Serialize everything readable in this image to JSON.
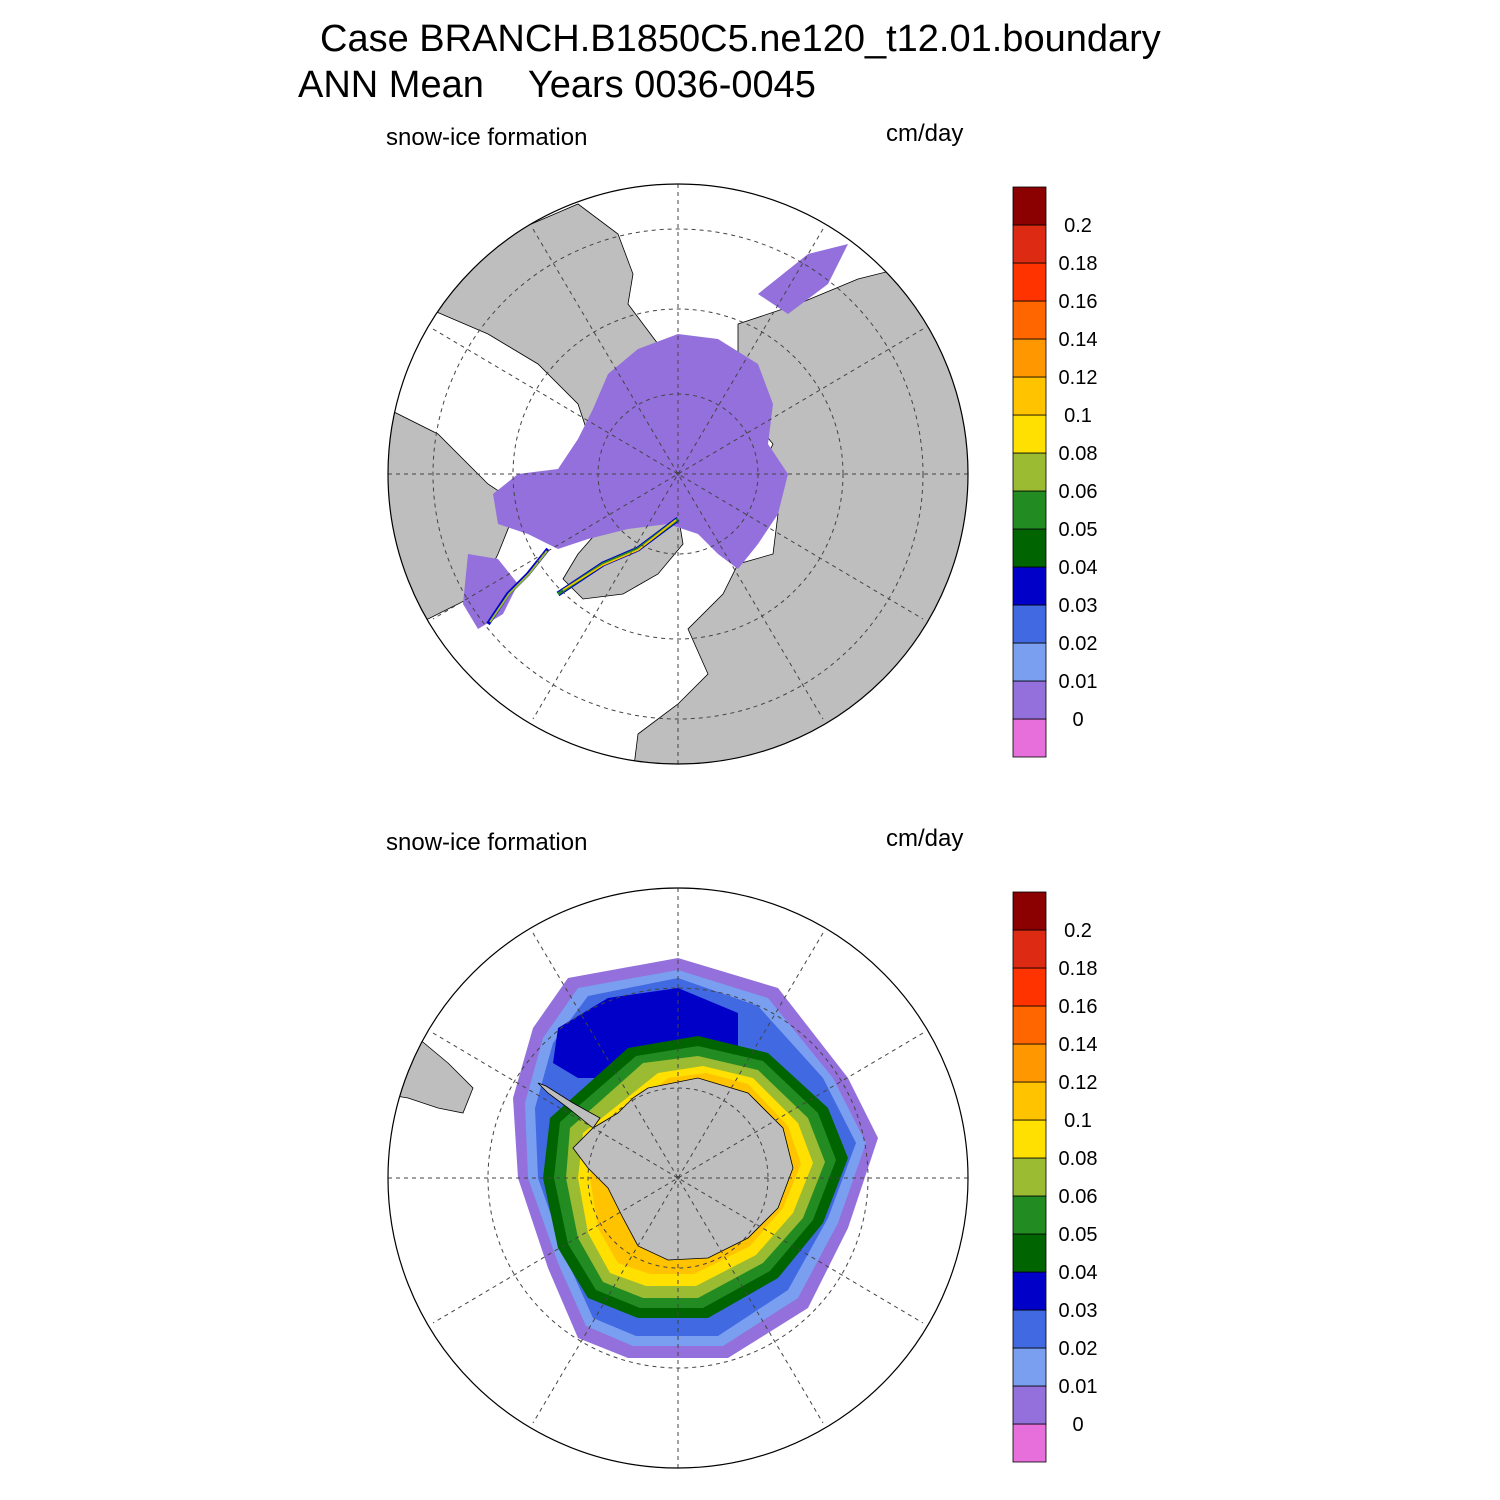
{
  "title_line1": "Case BRANCH.B1850C5.ne120_t12.01.boundary",
  "title_season": "ANN Mean",
  "title_years": "Years 0036-0045",
  "chart_data": [
    {
      "type": "heatmap",
      "projection": "north polar stereographic",
      "hemisphere": "north",
      "variable_label": "snow-ice formation",
      "units": "cm/day",
      "levels": [
        0,
        0.01,
        0.02,
        0.03,
        0.04,
        0.05,
        0.06,
        0.08,
        0.1,
        0.12,
        0.14,
        0.16,
        0.18,
        0.2
      ],
      "level_labels": [
        "0",
        "0.01",
        "0.02",
        "0.03",
        "0.04",
        "0.05",
        "0.06",
        "0.08",
        "0.1",
        "0.12",
        "0.14",
        "0.16",
        "0.18",
        "0.2"
      ],
      "colors": [
        "#e66fdc",
        "#9370db",
        "#7a9ef0",
        "#4169e1",
        "#0000c8",
        "#006400",
        "#228b22",
        "#9abb32",
        "#ffe000",
        "#ffc300",
        "#ff9800",
        "#ff6600",
        "#ff3300",
        "#dd2a12",
        "#8b0000"
      ],
      "grid": true
    },
    {
      "type": "heatmap",
      "projection": "south polar stereographic",
      "hemisphere": "south",
      "variable_label": "snow-ice formation",
      "units": "cm/day",
      "levels": [
        0,
        0.01,
        0.02,
        0.03,
        0.04,
        0.05,
        0.06,
        0.08,
        0.1,
        0.12,
        0.14,
        0.16,
        0.18,
        0.2
      ],
      "level_labels": [
        "0",
        "0.01",
        "0.02",
        "0.03",
        "0.04",
        "0.05",
        "0.06",
        "0.08",
        "0.1",
        "0.12",
        "0.14",
        "0.16",
        "0.18",
        "0.2"
      ],
      "colors": [
        "#e66fdc",
        "#9370db",
        "#7a9ef0",
        "#4169e1",
        "#0000c8",
        "#006400",
        "#228b22",
        "#9abb32",
        "#ffe000",
        "#ffc300",
        "#ff9800",
        "#ff6600",
        "#ff3300",
        "#dd2a12",
        "#8b0000"
      ],
      "grid": true
    }
  ],
  "colors": {
    "land": "#bebebe",
    "ocean": "#ffffff",
    "grid": "#444444"
  }
}
